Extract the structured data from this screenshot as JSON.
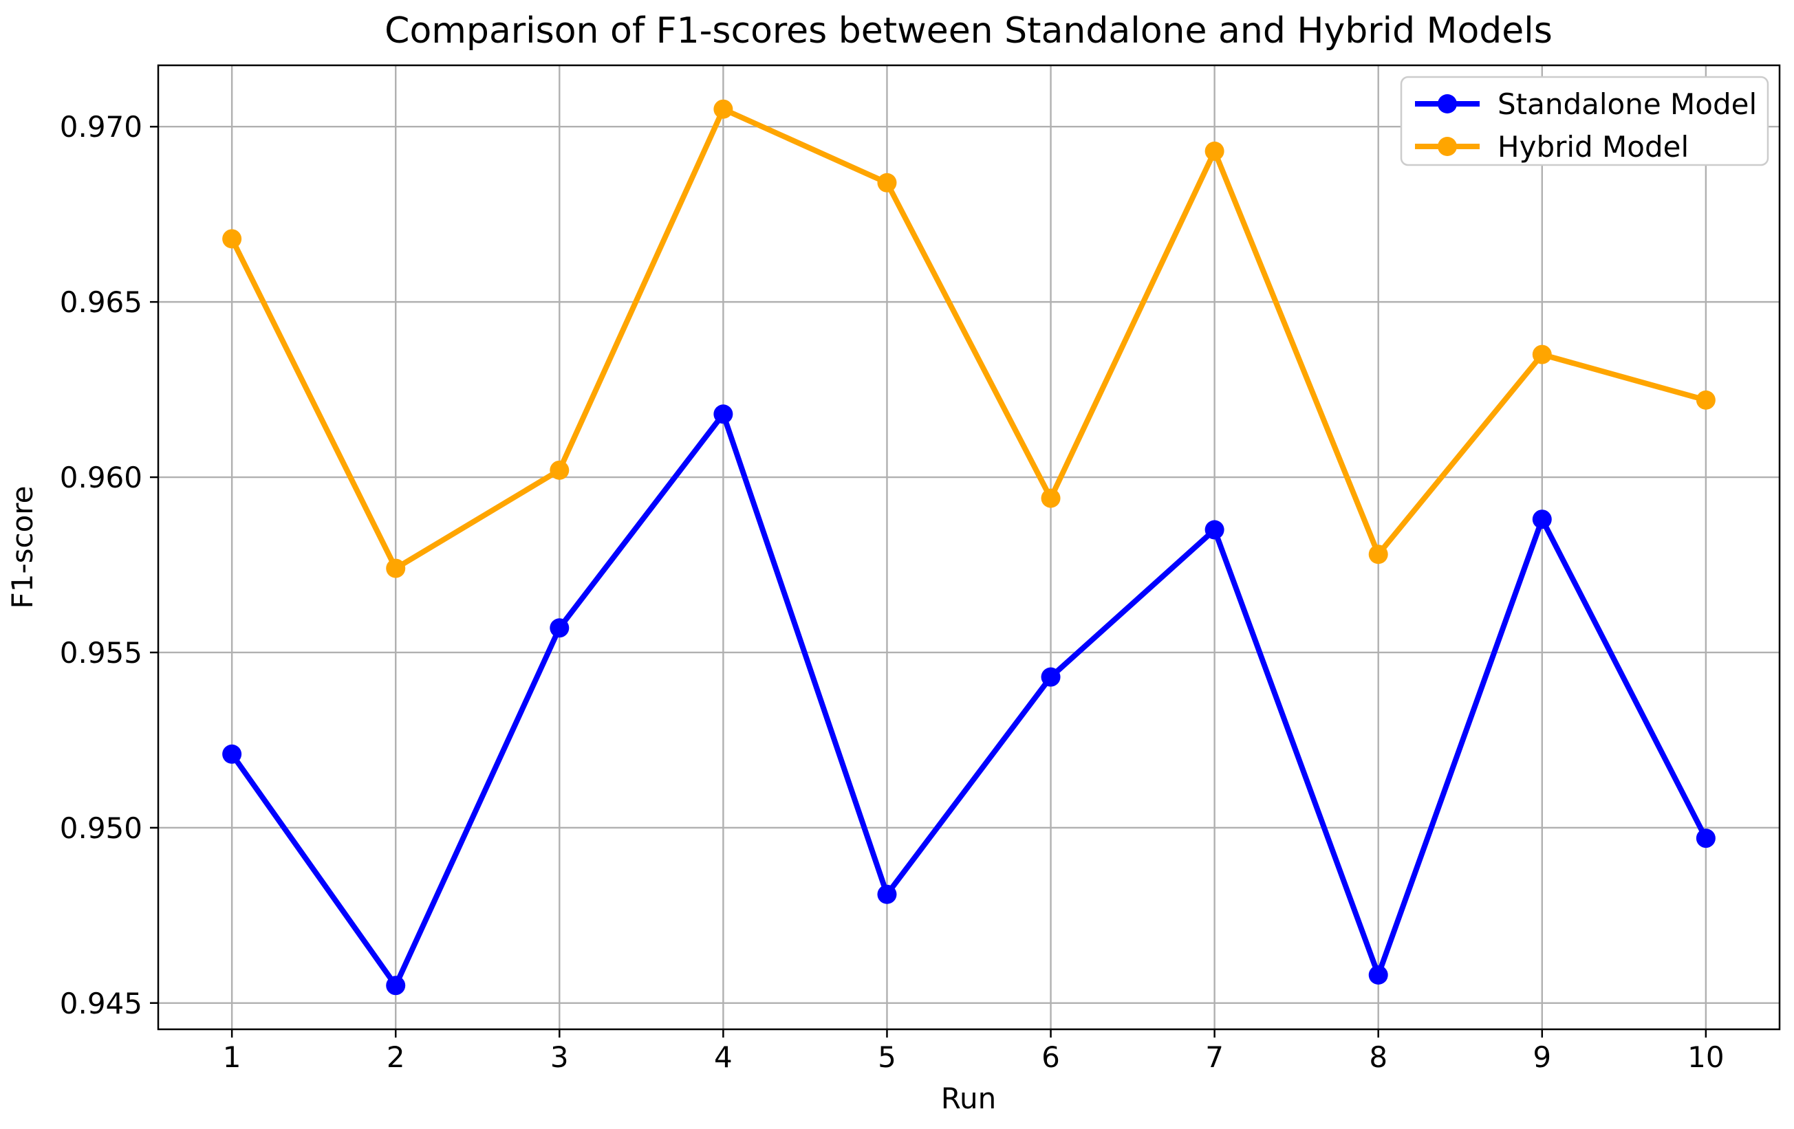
{
  "figure": {
    "title": "Comparison of F1-scores between Standalone and Hybrid Models",
    "xlabel": "Run",
    "ylabel": "F1-score"
  },
  "legend": {
    "entries": [
      {
        "label": "Standalone Model",
        "color": "#0000ff"
      },
      {
        "label": "Hybrid Model",
        "color": "#ffa500"
      }
    ]
  },
  "chart_data": {
    "type": "line",
    "title": "Comparison of F1-scores between Standalone and Hybrid Models",
    "xlabel": "Run",
    "ylabel": "F1-score",
    "x": [
      1,
      2,
      3,
      4,
      5,
      6,
      7,
      8,
      9,
      10
    ],
    "series": [
      {
        "name": "Standalone Model",
        "color": "#0000ff",
        "marker": "o",
        "values": [
          0.9521,
          0.9455,
          0.9557,
          0.9618,
          0.9481,
          0.9543,
          0.9585,
          0.9458,
          0.9588,
          0.9497
        ]
      },
      {
        "name": "Hybrid Model",
        "color": "#ffa500",
        "marker": "o",
        "values": [
          0.9668,
          0.9574,
          0.9602,
          0.9705,
          0.9684,
          0.9594,
          0.9693,
          0.9578,
          0.9635,
          0.9622
        ]
      }
    ],
    "xticks": [
      1,
      2,
      3,
      4,
      5,
      6,
      7,
      8,
      9,
      10
    ],
    "xtick_labels": [
      "1",
      "2",
      "3",
      "4",
      "5",
      "6",
      "7",
      "8",
      "9",
      "10"
    ],
    "yticks": [
      0.945,
      0.95,
      0.955,
      0.96,
      0.965,
      0.97
    ],
    "ytick_labels": [
      "0.945",
      "0.950",
      "0.955",
      "0.960",
      "0.965",
      "0.970"
    ],
    "xlim": [
      0.55,
      10.45
    ],
    "ylim": [
      0.94425,
      0.97175
    ],
    "grid": true,
    "grid_color": "#b0b0b0",
    "axis_color": "#000000",
    "background": "#ffffff",
    "legend_position": "upper right",
    "line_width": 8,
    "marker_radius": 14
  }
}
